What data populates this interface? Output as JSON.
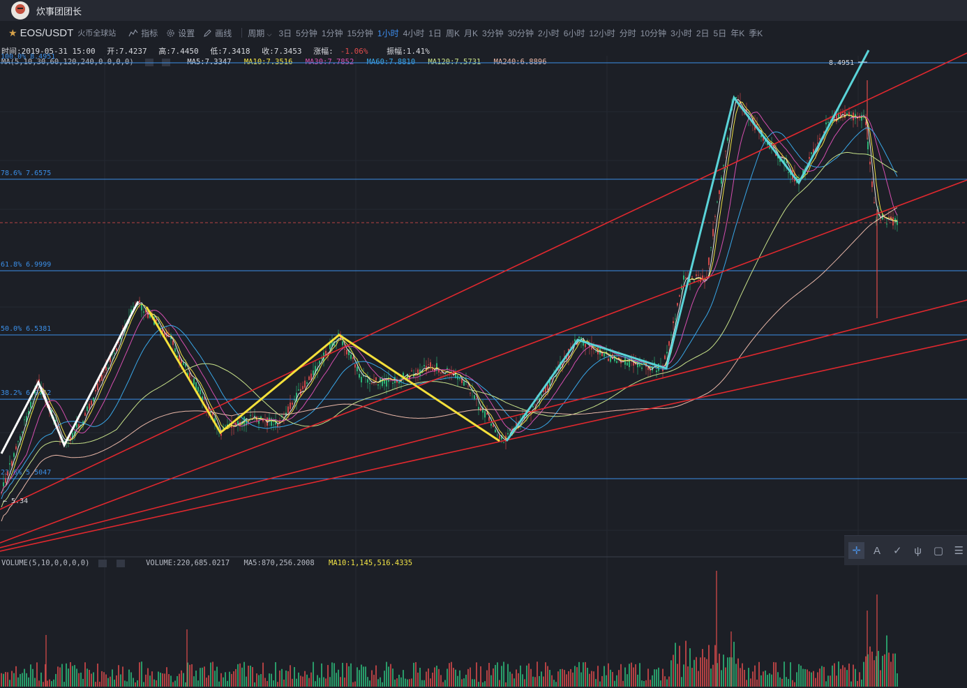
{
  "user": {
    "name": "炊事团团长"
  },
  "symbol": {
    "pair": "EOS/USDT",
    "exchange": "火币全球站"
  },
  "tools": {
    "indicators": "指标",
    "settings": "设置",
    "draw": "画线",
    "period_label": "周期"
  },
  "periods": [
    "3日",
    "5分钟",
    "1分钟",
    "15分钟",
    "1小时",
    "4小时",
    "1日",
    "周K",
    "月K",
    "3分钟",
    "30分钟",
    "2小时",
    "6小时",
    "12小时",
    "分时",
    "10分钟",
    "3小时",
    "2日",
    "5日",
    "年K",
    "季K"
  ],
  "active_period": "1小时",
  "ohlc": {
    "time": "时间:2019-05-31 15:00",
    "open": "开:7.4237",
    "high": "高:7.4450",
    "low": "低:7.3418",
    "close": "收:7.3453",
    "change_label": "涨幅:",
    "change": "-1.06%",
    "amplitude": "振幅:1.41%"
  },
  "ma_panel": {
    "title": "MA(5,10,30,60,120,240,0,0,0,0)",
    "ma5": "MA5:7.3347",
    "ma10": "MA10:7.3516",
    "ma30": "MA30:7.7852",
    "ma60": "MA60:7.8810",
    "ma120": "MA120:7.5731",
    "ma240": "MA240:6.8896"
  },
  "volume_panel": {
    "title": "VOLUME(5,10,0,0,0,0)",
    "volume": "VOLUME:220,685.0217",
    "ma5": "MA5:870,256.2008",
    "ma10": "MA10:1,145,516.4335"
  },
  "fib_levels": [
    {
      "label": "100.0% 8.4951",
      "price": 8.4951
    },
    {
      "label": "78.6% 7.6575",
      "price": 7.6575
    },
    {
      "label": "61.8% 6.9999",
      "price": 6.9999
    },
    {
      "label": "50.0% 6.5381",
      "price": 6.5381
    },
    {
      "label": "38.2% 6.0762",
      "price": 6.0762
    },
    {
      "label": "23.6% 5.5047",
      "price": 5.5047
    }
  ],
  "price_markers": {
    "high": "8.4951",
    "low": "5.34",
    "current": 7.3453
  },
  "colors": {
    "up": "#2ec27e",
    "down": "#e04c4c",
    "fib": "#3b8fe8",
    "trend": "#e0282e",
    "ma5": "#e8e8e8",
    "ma10": "#f0e246",
    "ma30": "#d54fb0",
    "ma60": "#39a7e8",
    "ma120": "#c8e28a",
    "ma240": "#e9b7a8",
    "wave_white": "#ffffff",
    "wave_yellow": "#f5e03a",
    "wave_cyan": "#5ad3d8"
  },
  "icons": [
    "indicator-icon",
    "settings-gear-icon",
    "pencil-icon",
    "crosshair-icon",
    "text-icon",
    "brush-icon",
    "pitchfork-icon",
    "rectangle-icon"
  ]
}
